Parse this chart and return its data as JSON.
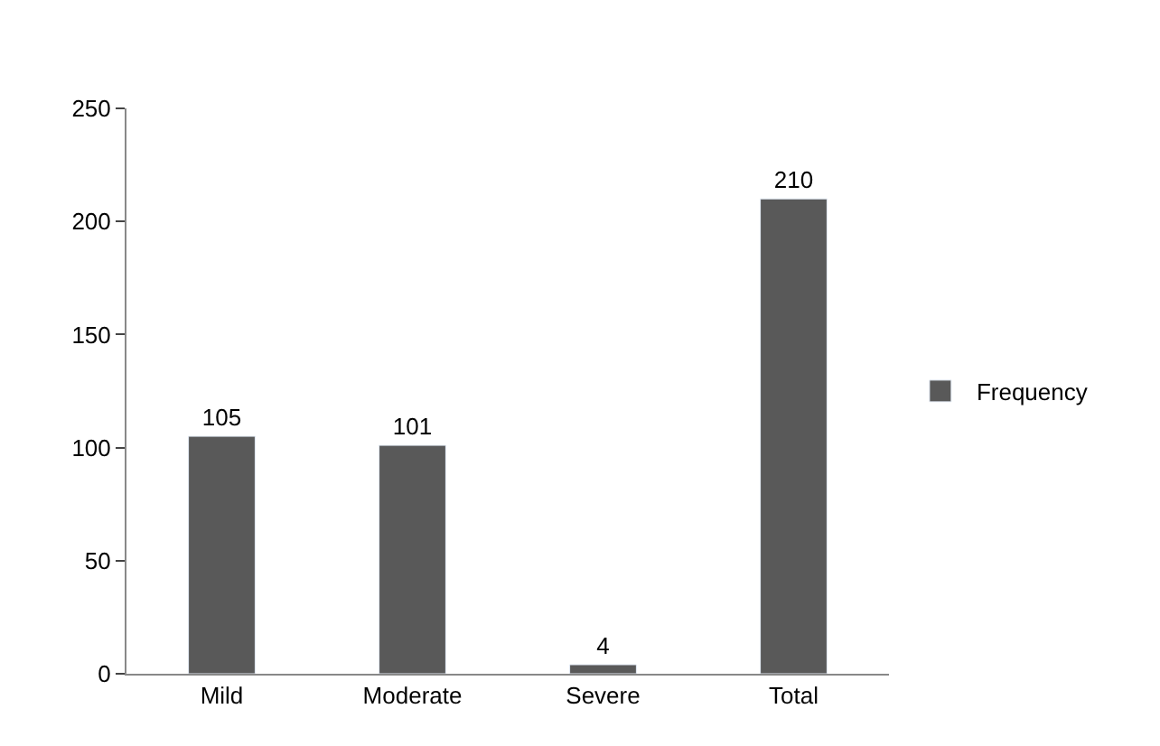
{
  "chart_data": {
    "type": "bar",
    "categories": [
      "Mild",
      "Moderate",
      "Severe",
      "Total"
    ],
    "series": [
      {
        "name": "Frequency",
        "color": "#595959",
        "values": [
          105,
          101,
          4,
          210
        ]
      }
    ],
    "ylim": [
      0,
      250
    ],
    "yticks": [
      0,
      50,
      100,
      150,
      200,
      250
    ],
    "legend": "right",
    "data_labels": true
  }
}
